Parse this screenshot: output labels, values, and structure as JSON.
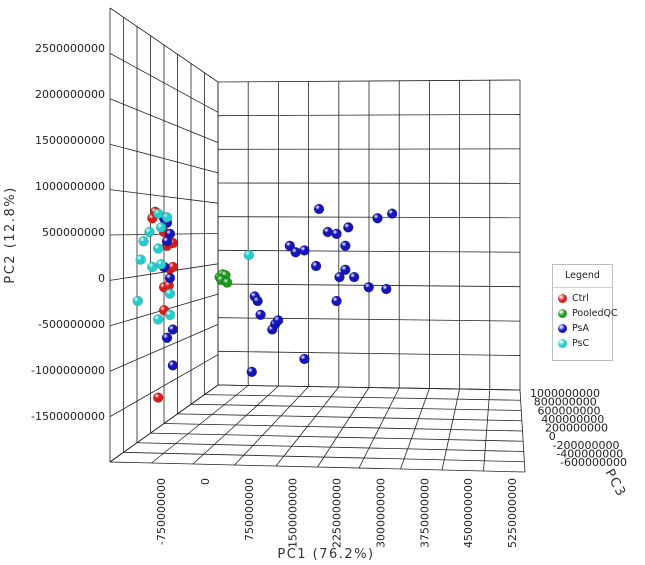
{
  "chart_data": {
    "type": "scatter",
    "subtype": "3d-pca-scores",
    "xlabel": "PC1 (76.2%)",
    "ylabel": "PC2 (12.8%)",
    "zlabel": "PC3",
    "x_ticks": [
      "-750000000",
      "0",
      "750000000",
      "1500000000",
      "2250000000",
      "3000000000",
      "3750000000",
      "4500000000",
      "5250000000"
    ],
    "x_tick_values": [
      -750000000,
      0,
      750000000,
      1500000000,
      2250000000,
      3000000000,
      3750000000,
      4500000000,
      5250000000
    ],
    "y_ticks": [
      "2500000000",
      "2000000000",
      "1500000000",
      "1000000000",
      "500000000",
      "0",
      "-500000000",
      "-1000000000",
      "-1500000000"
    ],
    "y_tick_values": [
      2500000000,
      2000000000,
      1500000000,
      1000000000,
      500000000,
      0,
      -500000000,
      -1000000000,
      -1500000000
    ],
    "z_ticks": [
      "1000000000",
      "800000000",
      "600000000",
      "400000000",
      "200000000",
      "0",
      "-200000000",
      "-400000000",
      "-600000000"
    ],
    "z_tick_values": [
      1000000000,
      800000000,
      600000000,
      400000000,
      200000000,
      0,
      -200000000,
      -400000000,
      -600000000
    ],
    "grid": true,
    "legend": {
      "title": "Legend",
      "position": "right"
    },
    "series": [
      {
        "name": "Ctrl",
        "color": "#d81c1c",
        "points": [
          {
            "x": -900000000,
            "y": 650000000,
            "z": 100000000
          },
          {
            "x": -850000000,
            "y": 720000000,
            "z": 200000000
          },
          {
            "x": -700000000,
            "y": 500000000,
            "z": 0
          },
          {
            "x": -650000000,
            "y": 350000000,
            "z": 100000000
          },
          {
            "x": -550000000,
            "y": 380000000,
            "z": -100000000
          },
          {
            "x": -600000000,
            "y": 100000000,
            "z": 0
          },
          {
            "x": -550000000,
            "y": 120000000,
            "z": -200000000
          },
          {
            "x": -700000000,
            "y": -100000000,
            "z": 100000000
          },
          {
            "x": -620000000,
            "y": -80000000,
            "z": 0
          },
          {
            "x": -700000000,
            "y": -350000000,
            "z": 0
          },
          {
            "x": -800000000,
            "y": -1300000000,
            "z": 200000000
          }
        ]
      },
      {
        "name": "PooledQC",
        "color": "#1d9a1d",
        "points": [
          {
            "x": 250000000,
            "y": 10000000,
            "z": 0
          },
          {
            "x": 300000000,
            "y": 40000000,
            "z": 0
          },
          {
            "x": 350000000,
            "y": 30000000,
            "z": 0
          },
          {
            "x": 280000000,
            "y": -20000000,
            "z": 0
          },
          {
            "x": 380000000,
            "y": -50000000,
            "z": 0
          }
        ]
      },
      {
        "name": "PsA",
        "color": "#1515b8",
        "points": [
          {
            "x": -700000000,
            "y": 650000000,
            "z": 0
          },
          {
            "x": -650000000,
            "y": 600000000,
            "z": 0
          },
          {
            "x": -600000000,
            "y": 480000000,
            "z": 0
          },
          {
            "x": -650000000,
            "y": 400000000,
            "z": 0
          },
          {
            "x": -700000000,
            "y": 120000000,
            "z": 0
          },
          {
            "x": -600000000,
            "y": 0,
            "z": 0
          },
          {
            "x": -550000000,
            "y": -560000000,
            "z": 0
          },
          {
            "x": -650000000,
            "y": -650000000,
            "z": 0
          },
          {
            "x": -550000000,
            "y": -950000000,
            "z": 0
          },
          {
            "x": 850000000,
            "y": -200000000,
            "z": 0
          },
          {
            "x": 900000000,
            "y": -250000000,
            "z": 0
          },
          {
            "x": 950000000,
            "y": -400000000,
            "z": 0
          },
          {
            "x": 1150000000,
            "y": -560000000,
            "z": 0
          },
          {
            "x": 1200000000,
            "y": -500000000,
            "z": 0
          },
          {
            "x": 1250000000,
            "y": -460000000,
            "z": 0
          },
          {
            "x": 800000000,
            "y": -1020000000,
            "z": 0
          },
          {
            "x": 1700000000,
            "y": -880000000,
            "z": 0
          },
          {
            "x": 1450000000,
            "y": 350000000,
            "z": 0
          },
          {
            "x": 1550000000,
            "y": 280000000,
            "z": 0
          },
          {
            "x": 1700000000,
            "y": 300000000,
            "z": 0
          },
          {
            "x": 1900000000,
            "y": 130000000,
            "z": 0
          },
          {
            "x": 1950000000,
            "y": 750000000,
            "z": 0
          },
          {
            "x": 2100000000,
            "y": 500000000,
            "z": 0
          },
          {
            "x": 2250000000,
            "y": 480000000,
            "z": 0
          },
          {
            "x": 2450000000,
            "y": 550000000,
            "z": 0
          },
          {
            "x": 2400000000,
            "y": 350000000,
            "z": 0
          },
          {
            "x": 2300000000,
            "y": 10000000,
            "z": 0
          },
          {
            "x": 2400000000,
            "y": 90000000,
            "z": 0
          },
          {
            "x": 2550000000,
            "y": 10000000,
            "z": 0
          },
          {
            "x": 2250000000,
            "y": -250000000,
            "z": 0
          },
          {
            "x": 2800000000,
            "y": -100000000,
            "z": 0
          },
          {
            "x": 2950000000,
            "y": 650000000,
            "z": 0
          },
          {
            "x": 3100000000,
            "y": -120000000,
            "z": 0
          },
          {
            "x": 3200000000,
            "y": 700000000,
            "z": 0
          }
        ]
      },
      {
        "name": "PsC",
        "color": "#25cccc",
        "points": [
          {
            "x": -1050000000,
            "y": 400000000,
            "z": 0
          },
          {
            "x": -1100000000,
            "y": 200000000,
            "z": 0
          },
          {
            "x": -1150000000,
            "y": -250000000,
            "z": 0
          },
          {
            "x": -950000000,
            "y": 500000000,
            "z": 0
          },
          {
            "x": -800000000,
            "y": 700000000,
            "z": 0
          },
          {
            "x": -750000000,
            "y": 550000000,
            "z": 0
          },
          {
            "x": -650000000,
            "y": 660000000,
            "z": 0
          },
          {
            "x": -800000000,
            "y": 320000000,
            "z": 0
          },
          {
            "x": -750000000,
            "y": 150000000,
            "z": 0
          },
          {
            "x": -900000000,
            "y": 120000000,
            "z": 0
          },
          {
            "x": -800000000,
            "y": -450000000,
            "z": 0
          },
          {
            "x": -600000000,
            "y": -170000000,
            "z": 0
          },
          {
            "x": -600000000,
            "y": -400000000,
            "z": 0
          },
          {
            "x": 750000000,
            "y": 250000000,
            "z": 0
          }
        ]
      }
    ]
  }
}
